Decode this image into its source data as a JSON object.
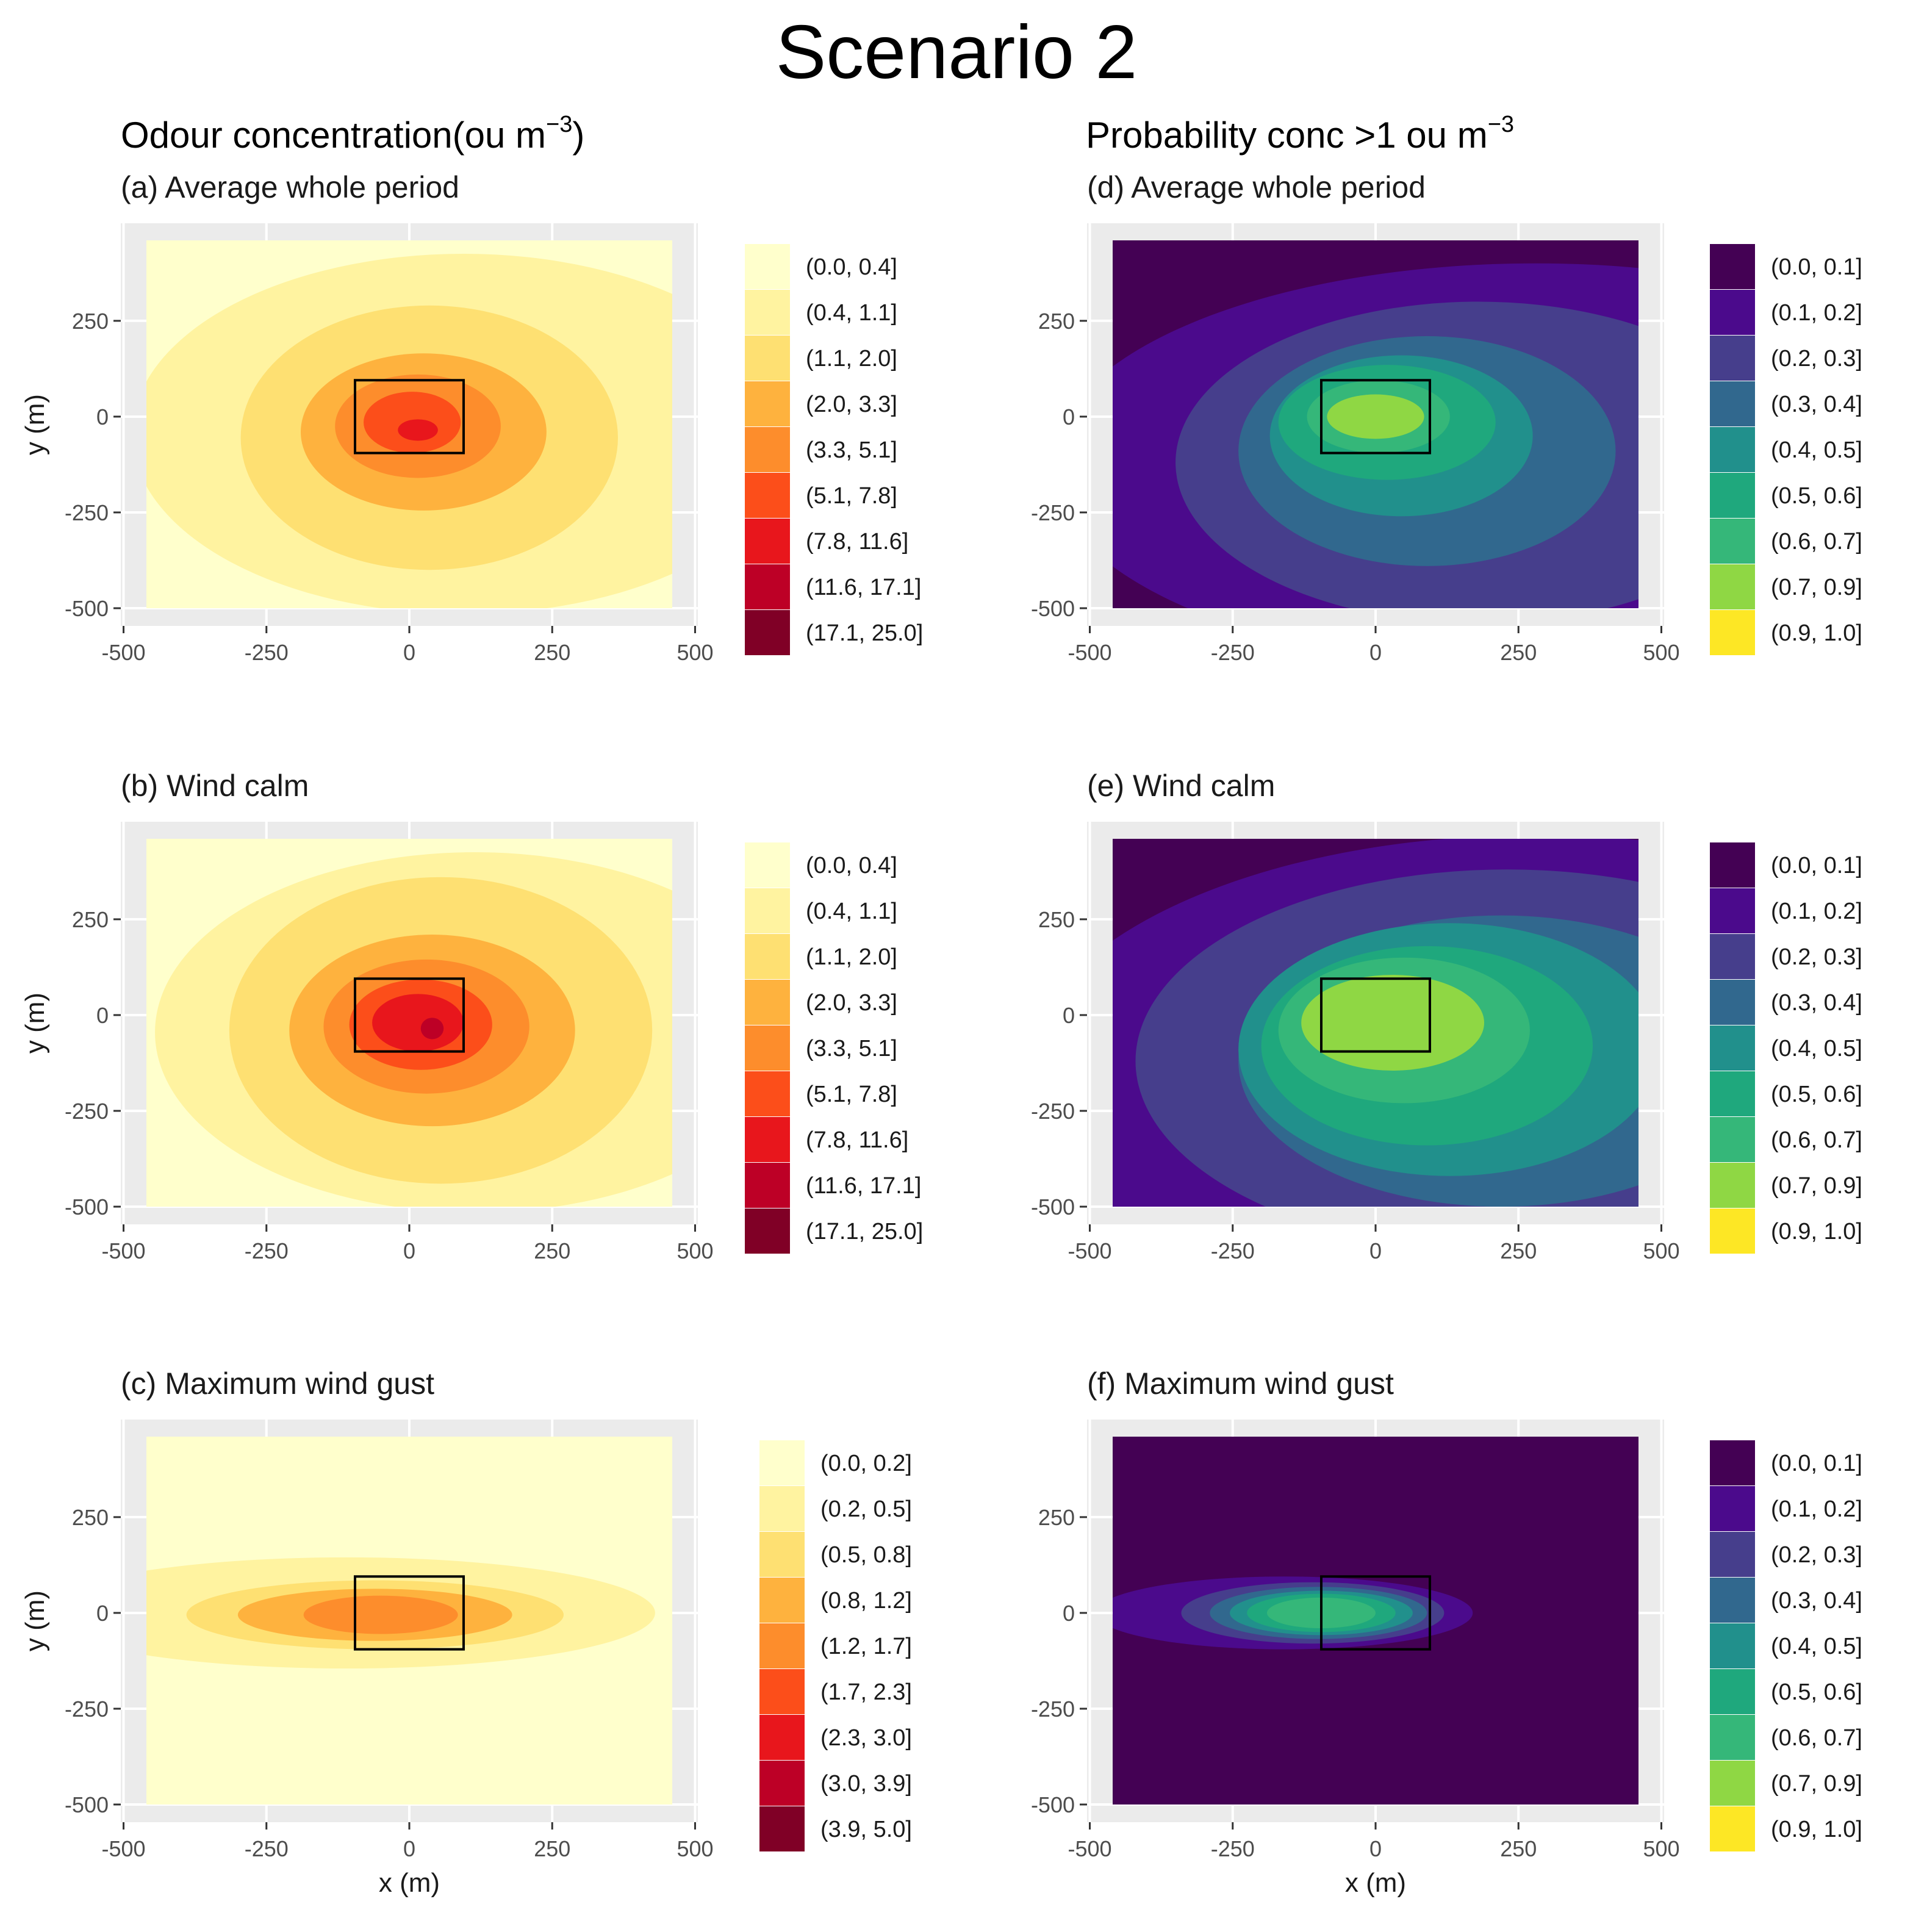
{
  "main_title": "Scenario 2",
  "columns": [
    {
      "title": "Odour concentration(ou m",
      "superscript": "−3",
      "suffix": ")"
    },
    {
      "title": "Probability conc >1 ou m",
      "superscript": "−3",
      "suffix": ""
    }
  ],
  "chart_data": [
    {
      "id": "a",
      "type": "heatmap",
      "title": "(a) Average whole period",
      "xlabel": "",
      "ylabel": "y (m)",
      "xlim": [
        -500,
        500
      ],
      "ylim": [
        -500,
        500
      ],
      "xticks": [
        -500,
        -250,
        0,
        250,
        500
      ],
      "yticks": [
        -500,
        -250,
        0,
        250
      ],
      "xtick_labels": [
        "-500",
        "-250",
        "0",
        "250",
        "500"
      ],
      "ytick_labels": [
        "-500",
        "-250",
        "0",
        "250"
      ],
      "palette": "ylorrd",
      "legend": [
        "(0.0, 0.4]",
        "(0.4, 1.1]",
        "(1.1, 2.0]",
        "(2.0, 3.3]",
        "(3.3, 5.1]",
        "(5.1, 7.8]",
        "(7.8, 11.6]",
        "(11.6, 17.1]",
        "(17.1, 25.0]"
      ],
      "colors": [
        "#FFFFCC",
        "#FFF3A0",
        "#FEE072",
        "#FEB23E",
        "#FD8D2C",
        "#FC4E1A",
        "#E8161C",
        "#BD0026",
        "#800026"
      ],
      "levels": [
        {
          "class": 1,
          "cx": 95,
          "cy": -45,
          "rx": 580,
          "ry": 470
        },
        {
          "class": 2,
          "cx": 35,
          "cy": -55,
          "rx": 330,
          "ry": 345
        },
        {
          "class": 3,
          "cx": 25,
          "cy": -40,
          "rx": 215,
          "ry": 205
        },
        {
          "class": 4,
          "cx": 15,
          "cy": -25,
          "rx": 145,
          "ry": 135
        },
        {
          "class": 5,
          "cx": 5,
          "cy": -15,
          "rx": 85,
          "ry": 80
        },
        {
          "class": 6,
          "cx": 15,
          "cy": -35,
          "rx": 35,
          "ry": 28
        }
      ],
      "source_box": {
        "x": [
          -95,
          95
        ],
        "y": [
          -95,
          95
        ]
      }
    },
    {
      "id": "b",
      "type": "heatmap",
      "title": "(b) Wind calm",
      "xlabel": "",
      "ylabel": "y (m)",
      "xlim": [
        -500,
        500
      ],
      "ylim": [
        -500,
        500
      ],
      "xticks": [
        -500,
        -250,
        0,
        250,
        500
      ],
      "yticks": [
        -500,
        -250,
        0,
        250
      ],
      "xtick_labels": [
        "-500",
        "-250",
        "0",
        "250",
        "500"
      ],
      "ytick_labels": [
        "-500",
        "-250",
        "0",
        "250"
      ],
      "palette": "ylorrd",
      "legend": [
        "(0.0, 0.4]",
        "(0.4, 1.1]",
        "(1.1, 2.0]",
        "(2.0, 3.3]",
        "(3.3, 5.1]",
        "(5.1, 7.8]",
        "(7.8, 11.6]",
        "(11.6, 17.1]",
        "(17.1, 25.0]"
      ],
      "colors": [
        "#FFFFCC",
        "#FFF3A0",
        "#FEE072",
        "#FEB23E",
        "#FD8D2C",
        "#FC4E1A",
        "#E8161C",
        "#BD0026",
        "#800026"
      ],
      "levels": [
        {
          "class": 1,
          "cx": 115,
          "cy": -45,
          "rx": 560,
          "ry": 470
        },
        {
          "class": 2,
          "cx": 55,
          "cy": -40,
          "rx": 370,
          "ry": 400
        },
        {
          "class": 3,
          "cx": 40,
          "cy": -40,
          "rx": 250,
          "ry": 250
        },
        {
          "class": 4,
          "cx": 30,
          "cy": -30,
          "rx": 180,
          "ry": 175
        },
        {
          "class": 5,
          "cx": 20,
          "cy": -25,
          "rx": 125,
          "ry": 118
        },
        {
          "class": 6,
          "cx": 15,
          "cy": -20,
          "rx": 80,
          "ry": 75
        },
        {
          "class": 7,
          "cx": 40,
          "cy": -35,
          "rx": 20,
          "ry": 28
        }
      ],
      "source_box": {
        "x": [
          -95,
          95
        ],
        "y": [
          -95,
          95
        ]
      }
    },
    {
      "id": "c",
      "type": "heatmap",
      "title": "(c) Maximum wind gust",
      "xlabel": "x (m)",
      "ylabel": "y (m)",
      "xlim": [
        -500,
        500
      ],
      "ylim": [
        -500,
        500
      ],
      "xticks": [
        -500,
        -250,
        0,
        250,
        500
      ],
      "yticks": [
        -500,
        -250,
        0,
        250
      ],
      "xtick_labels": [
        "-500",
        "-250",
        "0",
        "250",
        "500"
      ],
      "ytick_labels": [
        "-500",
        "-250",
        "0",
        "250"
      ],
      "palette": "ylorrd",
      "legend": [
        "(0.0, 0.2]",
        "(0.2, 0.5]",
        "(0.5, 0.8]",
        "(0.8, 1.2]",
        "(1.2, 1.7]",
        "(1.7, 2.3]",
        "(2.3, 3.0]",
        "(3.0, 3.9]",
        "(3.9, 5.0]"
      ],
      "colors": [
        "#FFFFCC",
        "#FFF3A0",
        "#FEE072",
        "#FEB23E",
        "#FD8D2C",
        "#FC4E1A",
        "#E8161C",
        "#BD0026",
        "#800026"
      ],
      "levels": [
        {
          "class": 1,
          "cx": -110,
          "cy": 0,
          "rx": 540,
          "ry": 145
        },
        {
          "class": 2,
          "cx": -60,
          "cy": -5,
          "rx": 330,
          "ry": 90
        },
        {
          "class": 3,
          "cx": -60,
          "cy": -5,
          "rx": 240,
          "ry": 68
        },
        {
          "class": 4,
          "cx": -50,
          "cy": -5,
          "rx": 135,
          "ry": 50
        }
      ],
      "source_box": {
        "x": [
          -95,
          95
        ],
        "y": [
          -95,
          95
        ]
      }
    },
    {
      "id": "d",
      "type": "heatmap",
      "title": "(d) Average whole period",
      "xlabel": "",
      "ylabel": "",
      "xlim": [
        -500,
        500
      ],
      "ylim": [
        -500,
        500
      ],
      "xticks": [
        -500,
        -250,
        0,
        250,
        500
      ],
      "yticks": [
        -500,
        -250,
        0,
        250
      ],
      "xtick_labels": [
        "-500",
        "-250",
        "0",
        "250",
        "500"
      ],
      "ytick_labels": [
        "-500",
        "-250",
        "0",
        "250"
      ],
      "palette": "viridis",
      "legend": [
        "(0.0, 0.1]",
        "(0.1, 0.2]",
        "(0.2, 0.3]",
        "(0.3, 0.4]",
        "(0.4, 0.5]",
        "(0.5, 0.6]",
        "(0.6, 0.7]",
        "(0.7, 0.9]",
        "(0.9, 1.0]"
      ],
      "colors": [
        "#440154",
        "#4B0A8C",
        "#463E8C",
        "#31688E",
        "#21908C",
        "#1FA87D",
        "#35B779",
        "#8FD744",
        "#FDE725"
      ],
      "levels": [
        {
          "class": 1,
          "cx": 280,
          "cy": -130,
          "rx": 850,
          "ry": 530
        },
        {
          "class": 2,
          "cx": 180,
          "cy": -120,
          "rx": 530,
          "ry": 420
        },
        {
          "class": 3,
          "cx": 90,
          "cy": -90,
          "rx": 330,
          "ry": 300
        },
        {
          "class": 4,
          "cx": 45,
          "cy": -50,
          "rx": 230,
          "ry": 210
        },
        {
          "class": 5,
          "cx": 20,
          "cy": -15,
          "rx": 190,
          "ry": 150
        },
        {
          "class": 6,
          "cx": 5,
          "cy": 0,
          "rx": 125,
          "ry": 95
        },
        {
          "class": 7,
          "cx": 0,
          "cy": 0,
          "rx": 85,
          "ry": 58
        }
      ],
      "source_box": {
        "x": [
          -95,
          95
        ],
        "y": [
          -95,
          95
        ]
      }
    },
    {
      "id": "e",
      "type": "heatmap",
      "title": "(e) Wind calm",
      "xlabel": "",
      "ylabel": "",
      "xlim": [
        -500,
        500
      ],
      "ylim": [
        -500,
        500
      ],
      "xticks": [
        -500,
        -250,
        0,
        250,
        500
      ],
      "yticks": [
        -500,
        -250,
        0,
        250
      ],
      "xtick_labels": [
        "-500",
        "-250",
        "0",
        "250",
        "500"
      ],
      "ytick_labels": [
        "-500",
        "-250",
        "0",
        "250"
      ],
      "palette": "viridis",
      "legend": [
        "(0.0, 0.1]",
        "(0.1, 0.2]",
        "(0.2, 0.3]",
        "(0.3, 0.4]",
        "(0.4, 0.5]",
        "(0.5, 0.6]",
        "(0.6, 0.7]",
        "(0.7, 0.9]",
        "(0.9, 1.0]"
      ],
      "colors": [
        "#440154",
        "#4B0A8C",
        "#463E8C",
        "#31688E",
        "#21908C",
        "#1FA87D",
        "#35B779",
        "#8FD744",
        "#FDE725"
      ],
      "levels": [
        {
          "class": 1,
          "cx": 280,
          "cy": -170,
          "rx": 900,
          "ry": 640
        },
        {
          "class": 2,
          "cx": 230,
          "cy": -120,
          "rx": 650,
          "ry": 500
        },
        {
          "class": 3,
          "cx": 220,
          "cy": -120,
          "rx": 460,
          "ry": 380
        },
        {
          "class": 4,
          "cx": 130,
          "cy": -90,
          "rx": 370,
          "ry": 330
        },
        {
          "class": 5,
          "cx": 90,
          "cy": -80,
          "rx": 290,
          "ry": 260
        },
        {
          "class": 6,
          "cx": 50,
          "cy": -40,
          "rx": 220,
          "ry": 190
        },
        {
          "class": 7,
          "cx": 30,
          "cy": -20,
          "rx": 160,
          "ry": 125
        }
      ],
      "source_box": {
        "x": [
          -95,
          95
        ],
        "y": [
          -95,
          95
        ]
      }
    },
    {
      "id": "f",
      "type": "heatmap",
      "title": "(f) Maximum wind gust",
      "xlabel": "x (m)",
      "ylabel": "",
      "xlim": [
        -500,
        500
      ],
      "ylim": [
        -500,
        500
      ],
      "xticks": [
        -500,
        -250,
        0,
        250,
        500
      ],
      "yticks": [
        -500,
        -250,
        0,
        250
      ],
      "xtick_labels": [
        "-500",
        "-250",
        "0",
        "250",
        "500"
      ],
      "ytick_labels": [
        "-500",
        "-250",
        "0",
        "250"
      ],
      "palette": "viridis",
      "legend": [
        "(0.0, 0.1]",
        "(0.1, 0.2]",
        "(0.2, 0.3]",
        "(0.3, 0.4]",
        "(0.4, 0.5]",
        "(0.5, 0.6]",
        "(0.6, 0.7]",
        "(0.7, 0.9]",
        "(0.9, 1.0]"
      ],
      "colors": [
        "#440154",
        "#4B0A8C",
        "#463E8C",
        "#31688E",
        "#21908C",
        "#1FA87D",
        "#35B779",
        "#8FD744",
        "#FDE725"
      ],
      "levels": [
        {
          "class": 1,
          "cx": -160,
          "cy": 0,
          "rx": 330,
          "ry": 95
        },
        {
          "class": 2,
          "cx": -110,
          "cy": 0,
          "rx": 230,
          "ry": 80
        },
        {
          "class": 3,
          "cx": -100,
          "cy": 0,
          "rx": 190,
          "ry": 68
        },
        {
          "class": 4,
          "cx": -95,
          "cy": 0,
          "rx": 160,
          "ry": 58
        },
        {
          "class": 5,
          "cx": -95,
          "cy": 0,
          "rx": 130,
          "ry": 50
        },
        {
          "class": 6,
          "cx": -95,
          "cy": 0,
          "rx": 95,
          "ry": 40
        }
      ],
      "source_box": {
        "x": [
          -95,
          95
        ],
        "y": [
          -95,
          95
        ]
      }
    }
  ]
}
